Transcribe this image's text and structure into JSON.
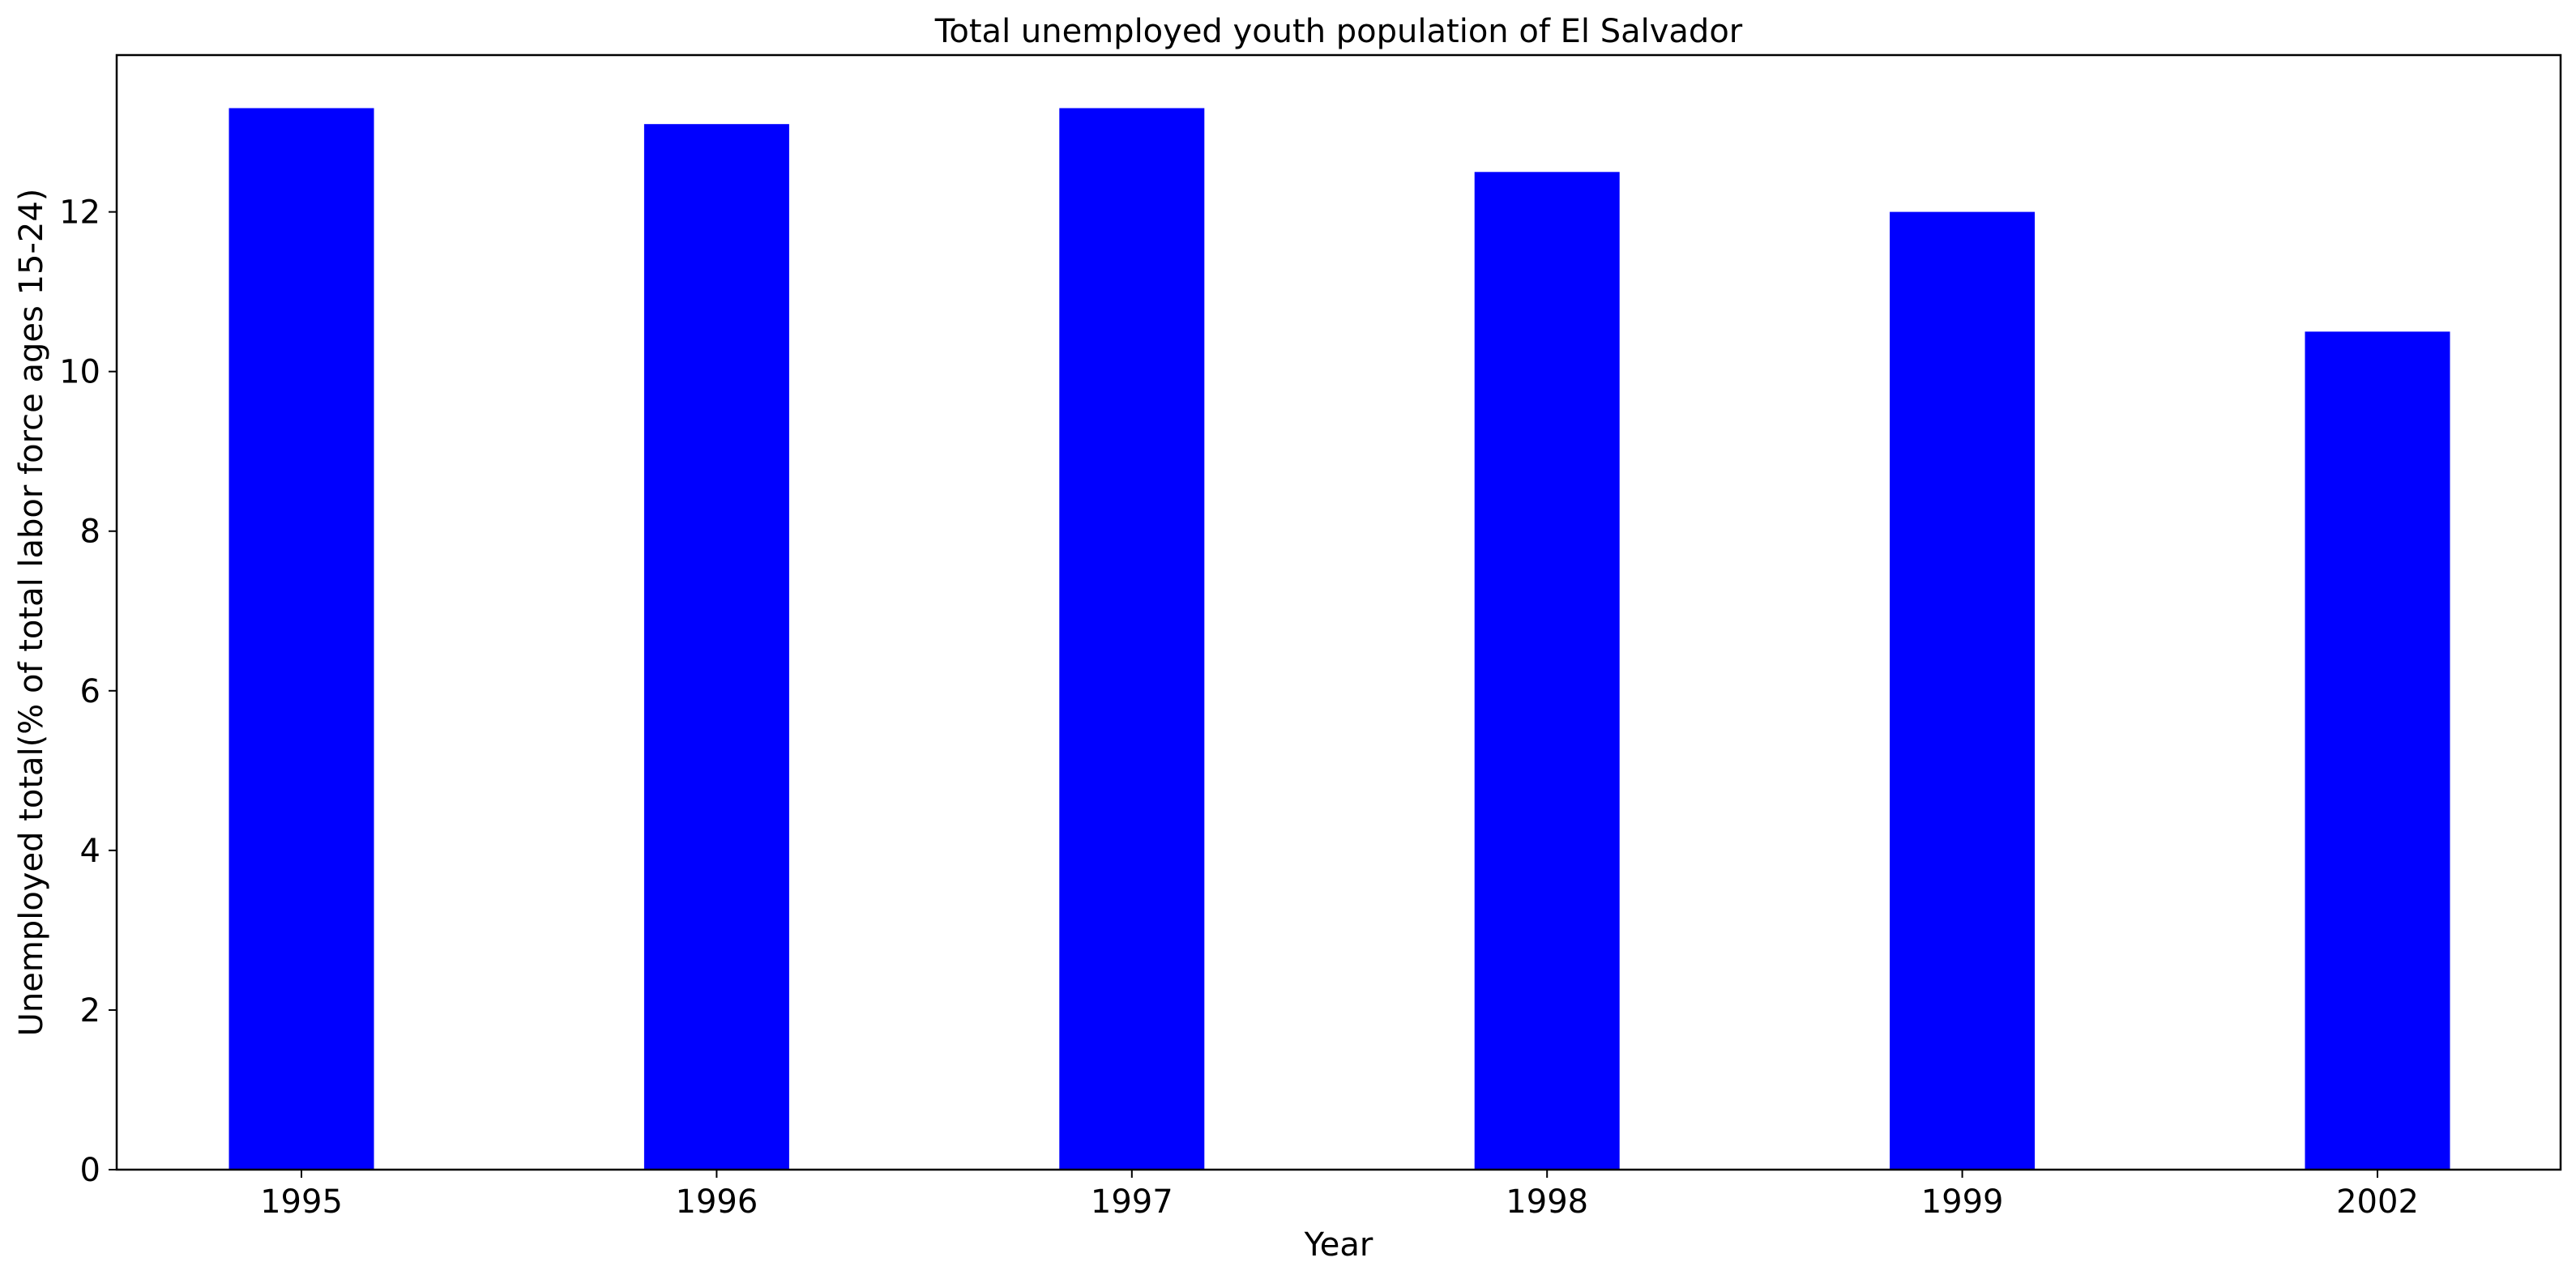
{
  "chart_data": {
    "type": "bar",
    "title": "Total unemployed youth population of El Salvador",
    "xlabel": "Year",
    "ylabel": "Unemployed total(% of total labor force ages 15-24)",
    "categories": [
      "1995",
      "1996",
      "1997",
      "1998",
      "1999",
      "2002"
    ],
    "values": [
      13.3,
      13.1,
      13.3,
      12.5,
      12.0,
      10.5
    ],
    "ylim": [
      0,
      13.965
    ],
    "yticks": [
      0,
      2,
      4,
      6,
      8,
      10,
      12
    ],
    "ytick_labels": [
      "0",
      "2",
      "4",
      "6",
      "8",
      "10",
      "12"
    ],
    "bar_color": "#0000ff",
    "grid": false,
    "legend": "none"
  }
}
